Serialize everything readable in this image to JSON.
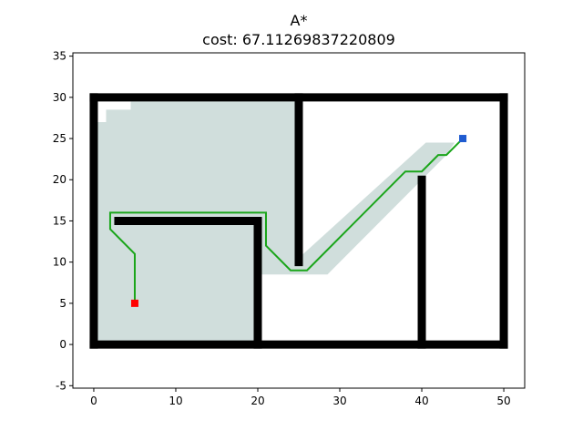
{
  "chart_data": {
    "type": "line",
    "title": "A*",
    "subtitle": "cost: 67.11269837220809",
    "xlim": [
      -2.55,
      52.55
    ],
    "ylim": [
      -5.3,
      35.4
    ],
    "xticks": [
      0,
      10,
      20,
      30,
      40,
      50
    ],
    "yticks": [
      -5,
      0,
      5,
      10,
      15,
      20,
      25,
      30,
      35
    ],
    "explored": {
      "color": "#d0dedc",
      "x": [
        0,
        20,
        20,
        28.5,
        43,
        44,
        40.5,
        25,
        25,
        4.5,
        4.5,
        1.5,
        1.5,
        0
      ],
      "y": [
        0,
        0,
        8.5,
        8.5,
        23,
        24.5,
        24.5,
        10.5,
        29.5,
        29.5,
        28.5,
        28.5,
        27,
        27
      ]
    },
    "obstacles": {
      "color": "#000000",
      "segments": [
        {
          "x": [
            0,
            50
          ],
          "y": [
            0,
            0
          ]
        },
        {
          "x": [
            0,
            50
          ],
          "y": [
            30,
            30
          ]
        },
        {
          "x": [
            0,
            0
          ],
          "y": [
            0,
            30
          ]
        },
        {
          "x": [
            50,
            50
          ],
          "y": [
            0,
            30
          ]
        },
        {
          "x": [
            25,
            25
          ],
          "y": [
            10,
            30
          ]
        },
        {
          "x": [
            40,
            40
          ],
          "y": [
            0,
            20
          ]
        },
        {
          "x": [
            3,
            20
          ],
          "y": [
            15,
            15
          ]
        },
        {
          "x": [
            20,
            20
          ],
          "y": [
            0,
            15
          ]
        }
      ]
    },
    "path": {
      "color": "#1aa51a",
      "x": [
        45,
        43,
        42,
        40,
        38,
        26,
        24,
        21,
        21,
        2,
        2,
        5,
        5
      ],
      "y": [
        25,
        23,
        23,
        21,
        21,
        9,
        9,
        12,
        16,
        16,
        14,
        11,
        5
      ]
    },
    "start": {
      "color": "#ff0000",
      "x": 5,
      "y": 5
    },
    "goal": {
      "color": "#1f5bd0",
      "x": 45,
      "y": 25
    }
  }
}
